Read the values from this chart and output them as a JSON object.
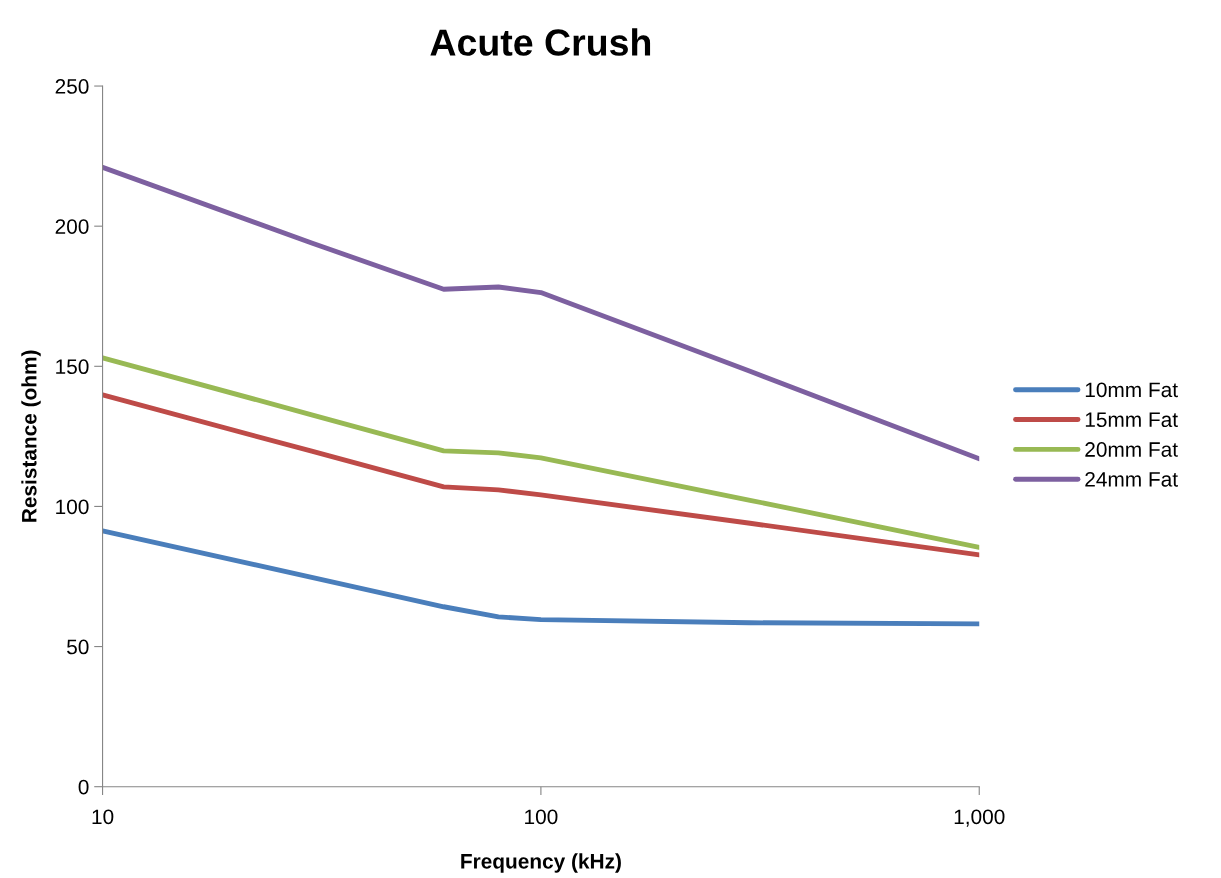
{
  "chart_data": {
    "type": "line",
    "title": "Acute Crush",
    "xlabel": "Frequency (kHz)",
    "ylabel": "Resistance (ohm)",
    "x": [
      10,
      30,
      60,
      80,
      100,
      300,
      1000
    ],
    "series": [
      {
        "name": "10mm Fat",
        "color": "#4a7ebb",
        "values": [
          91.3,
          74.7,
          64.2,
          60.6,
          59.6,
          58.5,
          58.1
        ]
      },
      {
        "name": "15mm Fat",
        "color": "#be4b48",
        "values": [
          139.8,
          119.7,
          107,
          105.9,
          104.1,
          94,
          82.7
        ]
      },
      {
        "name": "20mm Fat",
        "color": "#98b954",
        "values": [
          153,
          132.7,
          119.8,
          119.1,
          117.3,
          102.2,
          85.4
        ]
      },
      {
        "name": "24mm Fat",
        "color": "#7d60a0",
        "values": [
          221,
          194,
          177.5,
          178.3,
          176.3,
          148.2,
          117
        ]
      }
    ],
    "log": "x",
    "xlim": [
      10,
      1000
    ],
    "xticks": [
      10,
      100,
      {
        "value": 1000,
        "label": "1,000"
      }
    ],
    "ylim": [
      0,
      250
    ],
    "yticks": [
      0,
      50,
      100,
      150,
      200,
      250
    ],
    "grid": false,
    "legend": "right",
    "marker": "none",
    "line_style": "solid"
  }
}
